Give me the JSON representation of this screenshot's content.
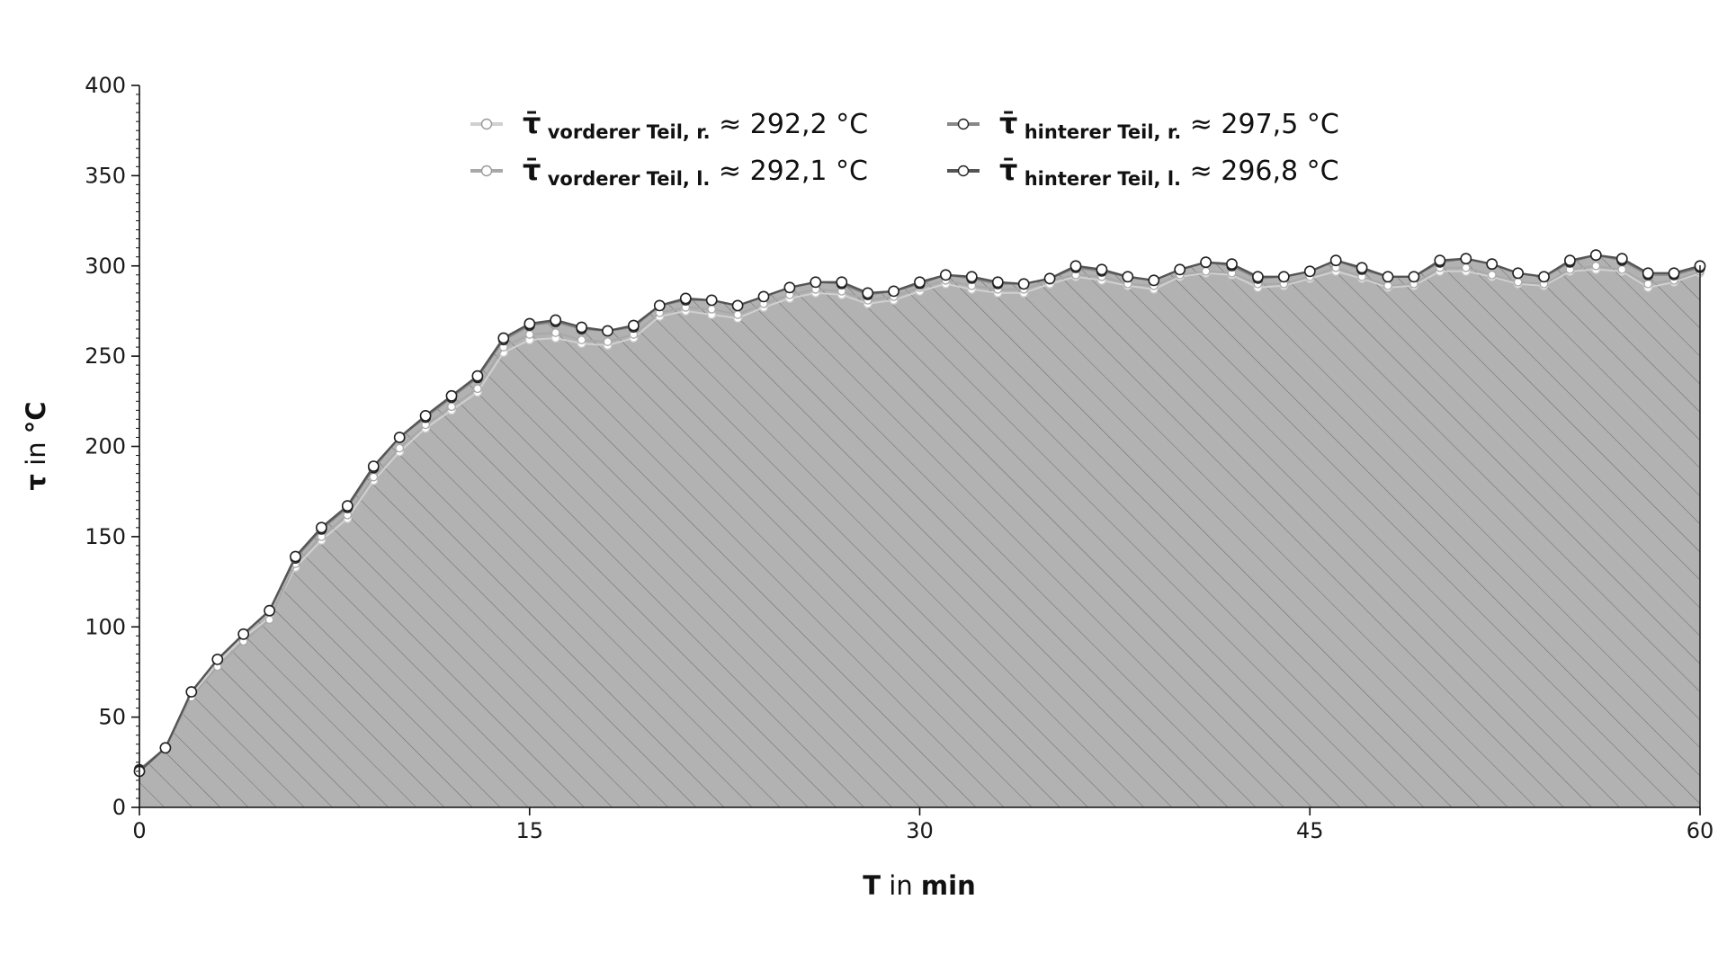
{
  "chart_data": {
    "type": "line",
    "xlabel": {
      "symbol": "T",
      "connector": " in ",
      "unit": "min"
    },
    "ylabel": {
      "symbol": "τ",
      "connector": " in ",
      "unit": "°C"
    },
    "xlim": [
      0,
      60
    ],
    "ylim": [
      0,
      400
    ],
    "x_ticks": [
      0,
      15,
      30,
      45,
      60
    ],
    "y_ticks": [
      0,
      50,
      100,
      150,
      200,
      250,
      300,
      350,
      400
    ],
    "fill_under": true,
    "fill_pattern": "diagonal-hatch",
    "legend_placement": "top-center",
    "grid": false,
    "x": [
      0,
      1,
      2,
      3,
      4,
      5,
      6,
      7,
      8,
      9,
      10,
      11,
      12,
      13,
      14,
      15,
      16,
      17,
      18,
      19,
      20,
      21,
      22,
      23,
      24,
      25,
      26,
      27,
      28,
      29,
      30,
      31,
      32,
      33,
      34,
      35,
      36,
      37,
      38,
      39,
      40,
      41,
      42,
      43,
      44,
      45,
      46,
      47,
      48,
      49,
      50,
      51,
      52,
      53,
      54,
      55,
      56,
      57,
      58,
      59,
      60
    ],
    "series": [
      {
        "symbol": "τ̄",
        "subscript": "vorderer Teil,  r.",
        "mean_text": "≈ 292,2 °C",
        "line_color": "#d0d0d0",
        "marker_fill": "#ffffff",
        "values": [
          20,
          33,
          62,
          80,
          94,
          105,
          133,
          148,
          160,
          181,
          197,
          210,
          220,
          230,
          252,
          259,
          260,
          257,
          256,
          260,
          272,
          275,
          273,
          271,
          277,
          282,
          285,
          284,
          279,
          281,
          286,
          290,
          287,
          285,
          285,
          290,
          294,
          292,
          289,
          287,
          294,
          296,
          295,
          288,
          289,
          293,
          297,
          293,
          288,
          289,
          297,
          297,
          294,
          290,
          289,
          297,
          298,
          297,
          288,
          291,
          296
        ]
      },
      {
        "symbol": "τ̄",
        "subscript": "vorderer Teil,  l.",
        "mean_text": "≈ 292,1 °C",
        "line_color": "#a8a8a8",
        "marker_fill": "#ffffff",
        "values": [
          20,
          33,
          61,
          78,
          92,
          104,
          135,
          150,
          162,
          183,
          199,
          212,
          222,
          232,
          255,
          262,
          263,
          259,
          258,
          262,
          274,
          277,
          276,
          273,
          279,
          284,
          287,
          286,
          281,
          283,
          288,
          292,
          289,
          287,
          287,
          292,
          295,
          294,
          290,
          289,
          295,
          297,
          296,
          290,
          290,
          294,
          299,
          294,
          289,
          290,
          299,
          299,
          295,
          291,
          290,
          298,
          300,
          298,
          290,
          292,
          297
        ]
      },
      {
        "symbol": "τ̄",
        "subscript": "hinterer Teil,  r.",
        "mean_text": "≈ 297,5 °C",
        "line_color": "#888888",
        "marker_fill": "#ffffff",
        "values": [
          21,
          33,
          64,
          82,
          96,
          109,
          138,
          154,
          166,
          188,
          205,
          216,
          227,
          238,
          259,
          267,
          269,
          265,
          264,
          266,
          278,
          281,
          281,
          278,
          283,
          288,
          291,
          290,
          284,
          286,
          290,
          295,
          293,
          290,
          290,
          293,
          299,
          297,
          294,
          292,
          298,
          302,
          300,
          293,
          294,
          297,
          303,
          298,
          294,
          294,
          302,
          304,
          301,
          296,
          294,
          302,
          306,
          303,
          295,
          295,
          299
        ]
      },
      {
        "symbol": "τ̄",
        "subscript": "hinterer Teil,  l.",
        "mean_text": "≈ 296,8 °C",
        "line_color": "#555555",
        "marker_fill": "#ffffff",
        "values": [
          20,
          33,
          64,
          82,
          96,
          109,
          139,
          155,
          167,
          189,
          205,
          217,
          228,
          239,
          260,
          268,
          270,
          266,
          264,
          267,
          278,
          282,
          281,
          278,
          283,
          288,
          291,
          291,
          285,
          286,
          291,
          295,
          294,
          291,
          290,
          293,
          300,
          298,
          294,
          292,
          298,
          302,
          301,
          294,
          294,
          297,
          303,
          299,
          294,
          294,
          303,
          304,
          301,
          296,
          294,
          303,
          306,
          304,
          296,
          296,
          300
        ]
      }
    ]
  }
}
